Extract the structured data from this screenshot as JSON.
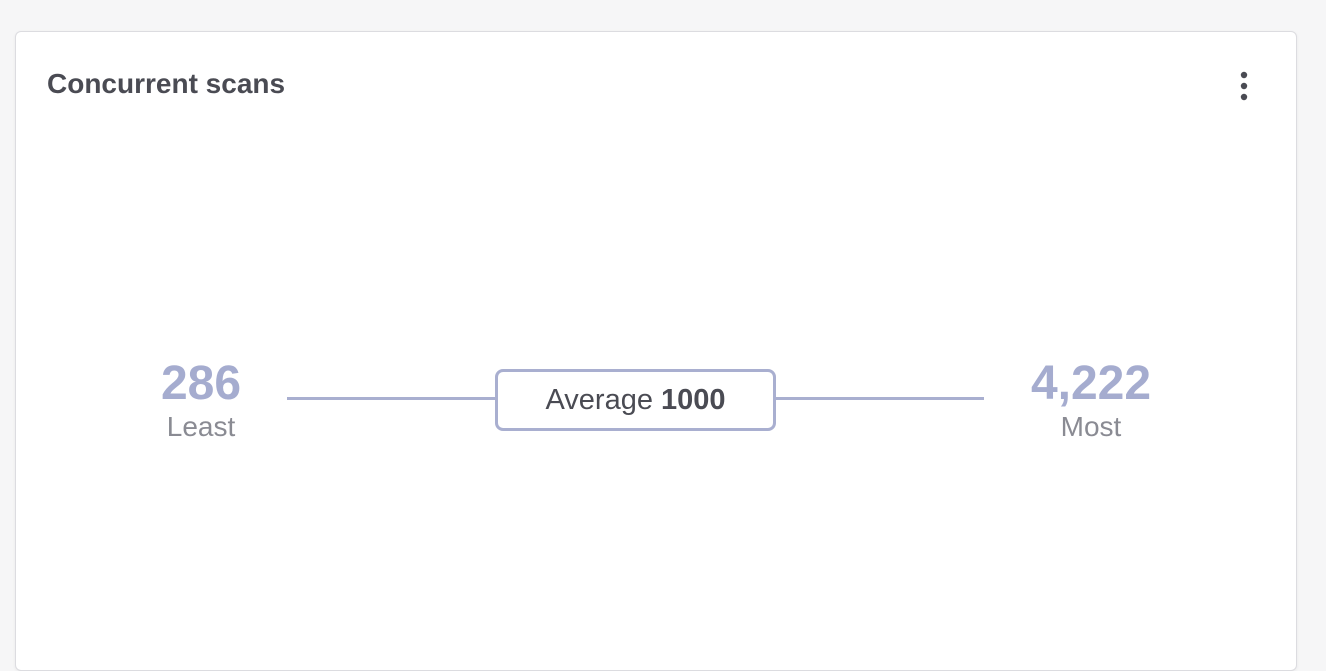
{
  "card": {
    "title": "Concurrent scans",
    "menu_icon": "more-vertical-icon"
  },
  "range": {
    "least_value": "286",
    "least_label": "Least",
    "average_label": "Average",
    "average_value": "1000",
    "most_value": "4,222",
    "most_label": "Most"
  },
  "colors": {
    "accent": "#a5accf",
    "line": "#a9afd0",
    "title": "#4a4b53",
    "label": "#8a8b93"
  }
}
